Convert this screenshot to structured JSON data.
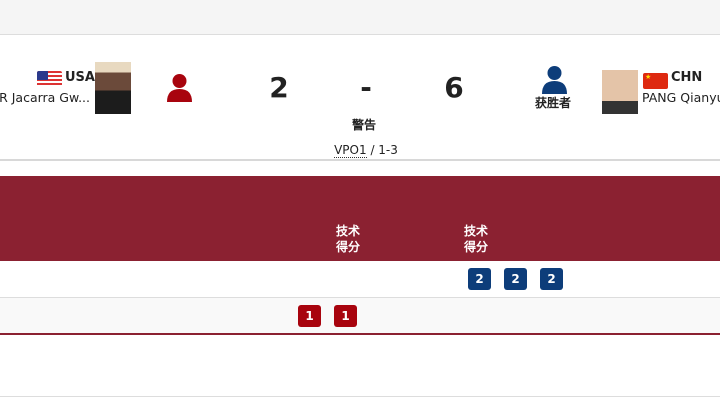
{
  "colors": {
    "accent_red": "#8b2131",
    "blue": "#0d3d7a",
    "red": "#a8040e"
  },
  "left_athlete": {
    "noc": "USA",
    "name": "R Jacarra Gw...",
    "flag_icon": "usa-flag"
  },
  "right_athlete": {
    "noc": "CHN",
    "name": "PANG Qianyu",
    "flag_icon": "chn-flag",
    "winner_label": "获胜者"
  },
  "score": {
    "left": "2",
    "separator": "-",
    "right": "6",
    "decision": "警告",
    "victory_type": "VPO1",
    "victory_sep": " / ",
    "points": "1-3"
  },
  "table": {
    "headers": [
      "技术\n得分",
      "技术\n得分"
    ],
    "rows": [
      {
        "badges": [
          "2",
          "2",
          "2"
        ],
        "color": "blue"
      },
      {
        "badges": [
          "1",
          "1"
        ],
        "color": "red"
      }
    ]
  }
}
